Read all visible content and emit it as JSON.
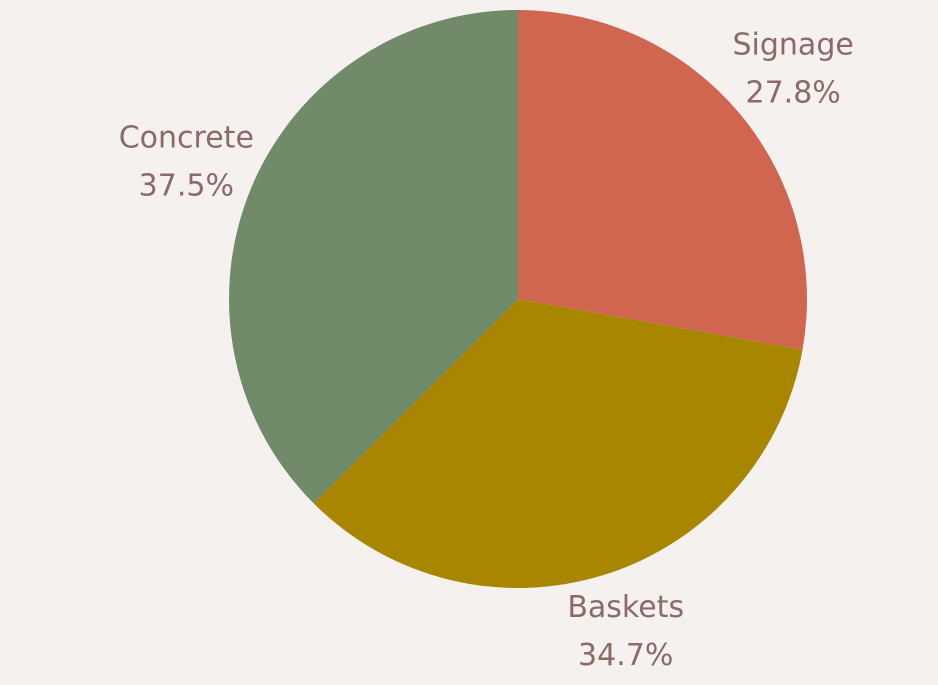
{
  "chart_data": {
    "type": "pie",
    "title": "",
    "start": "top",
    "direction": "clockwise",
    "legend": "none",
    "background_color": "#f5f1ee",
    "label_color": "#8b6a68",
    "slices": [
      {
        "label": "Signage",
        "value": 27.8,
        "value_label": "27.8%",
        "color": "#d0664f"
      },
      {
        "label": "Baskets",
        "value": 34.7,
        "value_label": "34.7%",
        "color": "#a88600"
      },
      {
        "label": "Concrete",
        "value": 37.5,
        "value_label": "37.5%",
        "color": "#718a6a"
      }
    ]
  }
}
